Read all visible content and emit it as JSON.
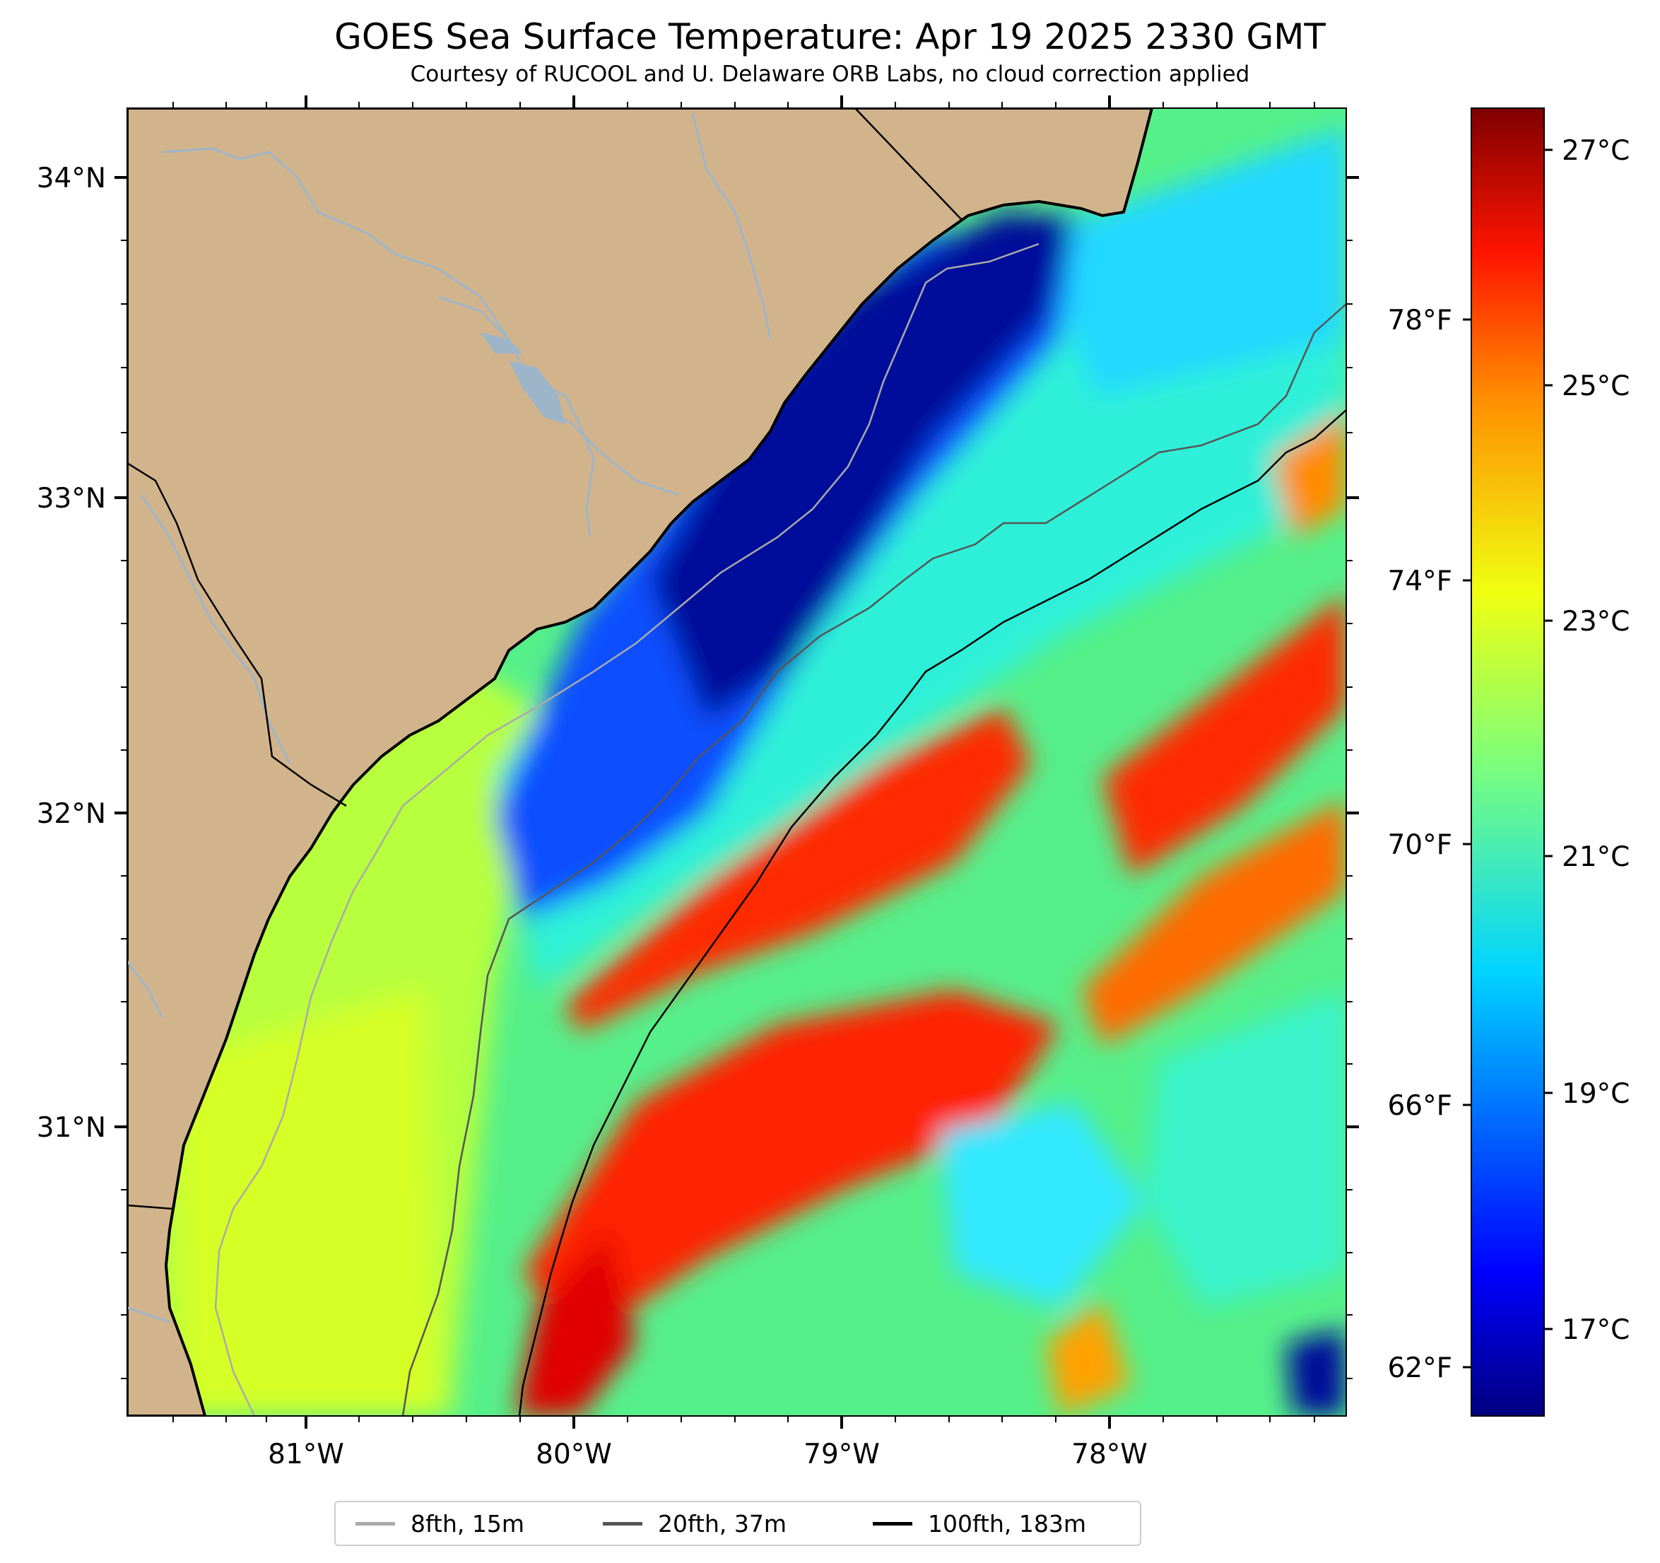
{
  "title": "GOES Sea Surface Temperature: Apr 19 2025 2330 GMT",
  "subtitle": "Courtesy of RUCOOL and U. Delaware ORB Labs, no cloud correction applied",
  "map": {
    "land_color": "#d2b48c",
    "river_color": "#9db5c9",
    "lat_labels": [
      "34°N",
      "33°N",
      "32°N",
      "31°N"
    ],
    "lon_labels": [
      "81°W",
      "80°W",
      "79°W",
      "78°W"
    ],
    "fahrenheit_labels": [
      "78°F",
      "74°F",
      "70°F",
      "66°F",
      "62°F"
    ]
  },
  "colorbar": {
    "colormap": "jet",
    "min_c": 16.3,
    "max_c": 27.5,
    "labels": [
      "27°C",
      "25°C",
      "23°C",
      "21°C",
      "19°C",
      "17°C"
    ]
  },
  "legend": {
    "items": [
      {
        "label": "8fth, 15m",
        "color": "#aaaaaa"
      },
      {
        "label": "20fth, 37m",
        "color": "#555555"
      },
      {
        "label": "100fth, 183m",
        "color": "#000000"
      }
    ]
  }
}
